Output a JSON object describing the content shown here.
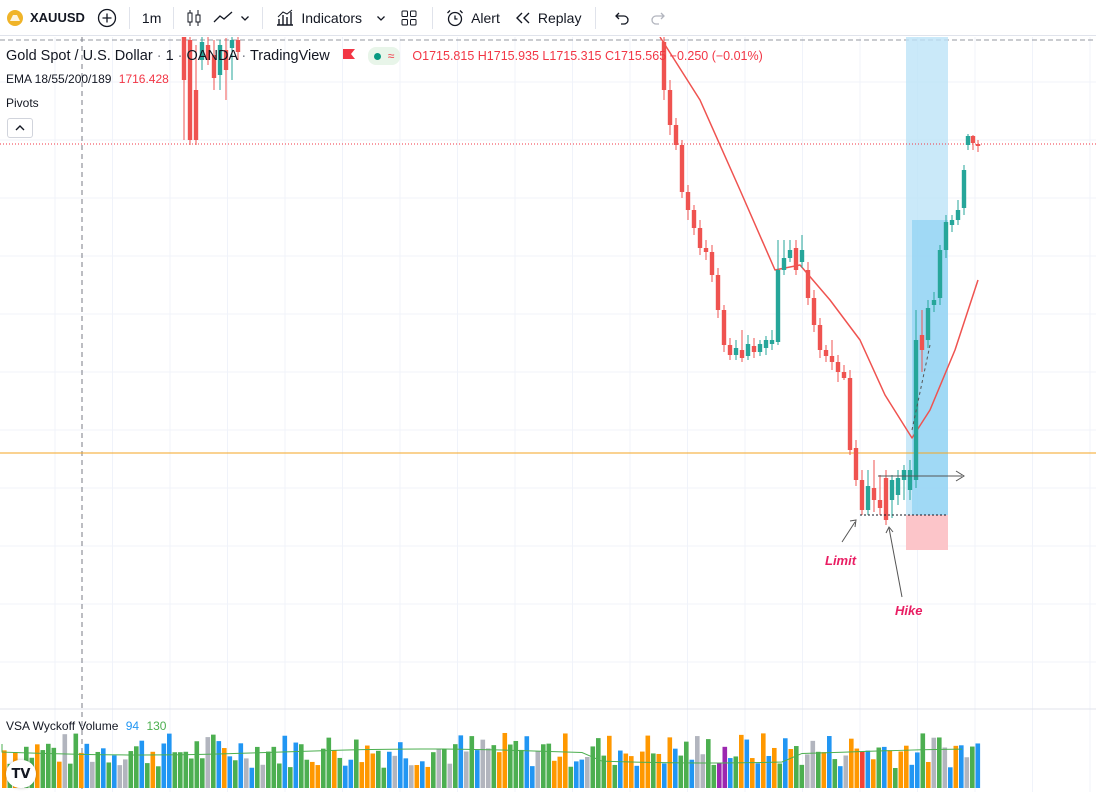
{
  "toolbar": {
    "symbol": "XAUUSD",
    "interval": "1m",
    "indicators_label": "Indicators",
    "alert_label": "Alert",
    "replay_label": "Replay"
  },
  "legend": {
    "title": "Gold Spot / U.S. Dollar",
    "interval": "1",
    "source": "OANDA",
    "platform": "TradingView",
    "open": "O1715.815",
    "high": "H1715.935",
    "low": "L1715.315",
    "close": "C1715.565",
    "change": "−0.250 (−0.01%)",
    "ema_label": "EMA 18/55/200/189",
    "ema_value": "1716.428",
    "pivots_label": "Pivots"
  },
  "volume_legend": {
    "label": "VSA Wyckoff Volume",
    "value1": "94",
    "value2": "130"
  },
  "annotations": {
    "limit": "Limit",
    "hike": "Hike"
  },
  "logo_text": "TV",
  "colors": {
    "up": "#26a69a",
    "down": "#ef5350",
    "ema": "#ef5350",
    "accent": "#2962ff",
    "level": "#f5a623",
    "annotation": "#e91e63",
    "vol_orange": "#ff9800",
    "vol_green": "#4caf50",
    "vol_blue": "#2196f3",
    "vol_purple": "#9c27b0",
    "vol_red": "#f44336",
    "vol_grey": "#b2b5be"
  }
}
